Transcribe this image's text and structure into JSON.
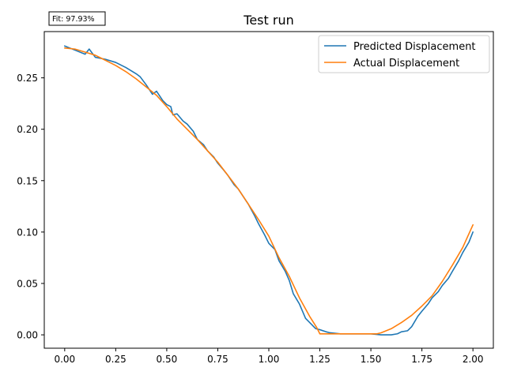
{
  "chart_data": {
    "type": "line",
    "title": "Test run",
    "annotation": "Fit: 97.93%",
    "xlabel": "",
    "ylabel": "",
    "xlim": [
      -0.1,
      2.1
    ],
    "ylim": [
      -0.013,
      0.295
    ],
    "xticks": [
      0.0,
      0.25,
      0.5,
      0.75,
      1.0,
      1.25,
      1.5,
      1.75,
      2.0
    ],
    "xtick_labels": [
      "0.00",
      "0.25",
      "0.50",
      "0.75",
      "1.00",
      "1.25",
      "1.50",
      "1.75",
      "2.00"
    ],
    "yticks": [
      0.0,
      0.05,
      0.1,
      0.15,
      0.2,
      0.25
    ],
    "ytick_labels": [
      "0.00",
      "0.05",
      "0.10",
      "0.15",
      "0.20",
      "0.25"
    ],
    "grid": false,
    "legend_position": "top-right",
    "colors": {
      "predicted": "#1f77b4",
      "actual": "#ff7f0e"
    },
    "series": [
      {
        "name": "Predicted Displacement",
        "x": [
          0.0,
          0.05,
          0.1,
          0.12,
          0.15,
          0.2,
          0.25,
          0.3,
          0.35,
          0.37,
          0.4,
          0.43,
          0.45,
          0.48,
          0.5,
          0.52,
          0.53,
          0.55,
          0.58,
          0.6,
          0.63,
          0.65,
          0.68,
          0.7,
          0.73,
          0.75,
          0.78,
          0.8,
          0.83,
          0.85,
          0.88,
          0.9,
          0.93,
          0.95,
          0.98,
          1.0,
          1.03,
          1.05,
          1.08,
          1.1,
          1.12,
          1.15,
          1.18,
          1.2,
          1.23,
          1.25,
          1.28,
          1.3,
          1.35,
          1.4,
          1.45,
          1.5,
          1.55,
          1.6,
          1.63,
          1.65,
          1.68,
          1.7,
          1.73,
          1.75,
          1.78,
          1.8,
          1.83,
          1.85,
          1.88,
          1.9,
          1.93,
          1.95,
          1.98,
          2.0
        ],
        "values": [
          0.281,
          0.277,
          0.273,
          0.278,
          0.27,
          0.268,
          0.265,
          0.26,
          0.254,
          0.251,
          0.243,
          0.234,
          0.237,
          0.228,
          0.224,
          0.222,
          0.214,
          0.215,
          0.208,
          0.205,
          0.198,
          0.19,
          0.185,
          0.179,
          0.173,
          0.167,
          0.16,
          0.155,
          0.146,
          0.142,
          0.133,
          0.127,
          0.116,
          0.108,
          0.097,
          0.089,
          0.083,
          0.072,
          0.062,
          0.053,
          0.04,
          0.03,
          0.016,
          0.012,
          0.006,
          0.005,
          0.003,
          0.002,
          0.001,
          0.001,
          0.001,
          0.001,
          0.0,
          0.0,
          0.001,
          0.003,
          0.004,
          0.008,
          0.018,
          0.023,
          0.03,
          0.036,
          0.042,
          0.048,
          0.055,
          0.062,
          0.072,
          0.08,
          0.09,
          0.1
        ]
      },
      {
        "name": "Actual Displacement",
        "x": [
          0.0,
          0.05,
          0.1,
          0.15,
          0.2,
          0.25,
          0.3,
          0.35,
          0.4,
          0.45,
          0.5,
          0.55,
          0.6,
          0.65,
          0.7,
          0.75,
          0.8,
          0.85,
          0.9,
          0.95,
          1.0,
          1.05,
          1.1,
          1.15,
          1.2,
          1.235,
          1.25,
          1.3,
          1.35,
          1.4,
          1.45,
          1.5,
          1.53,
          1.55,
          1.6,
          1.65,
          1.7,
          1.75,
          1.8,
          1.85,
          1.9,
          1.95,
          2.0
        ],
        "values": [
          0.279,
          0.278,
          0.275,
          0.272,
          0.267,
          0.262,
          0.256,
          0.249,
          0.241,
          0.233,
          0.222,
          0.21,
          0.2,
          0.19,
          0.179,
          0.168,
          0.155,
          0.142,
          0.127,
          0.112,
          0.096,
          0.075,
          0.057,
          0.036,
          0.018,
          0.007,
          0.001,
          0.001,
          0.001,
          0.001,
          0.001,
          0.001,
          0.001,
          0.002,
          0.006,
          0.012,
          0.019,
          0.028,
          0.038,
          0.052,
          0.068,
          0.085,
          0.107
        ]
      }
    ]
  }
}
